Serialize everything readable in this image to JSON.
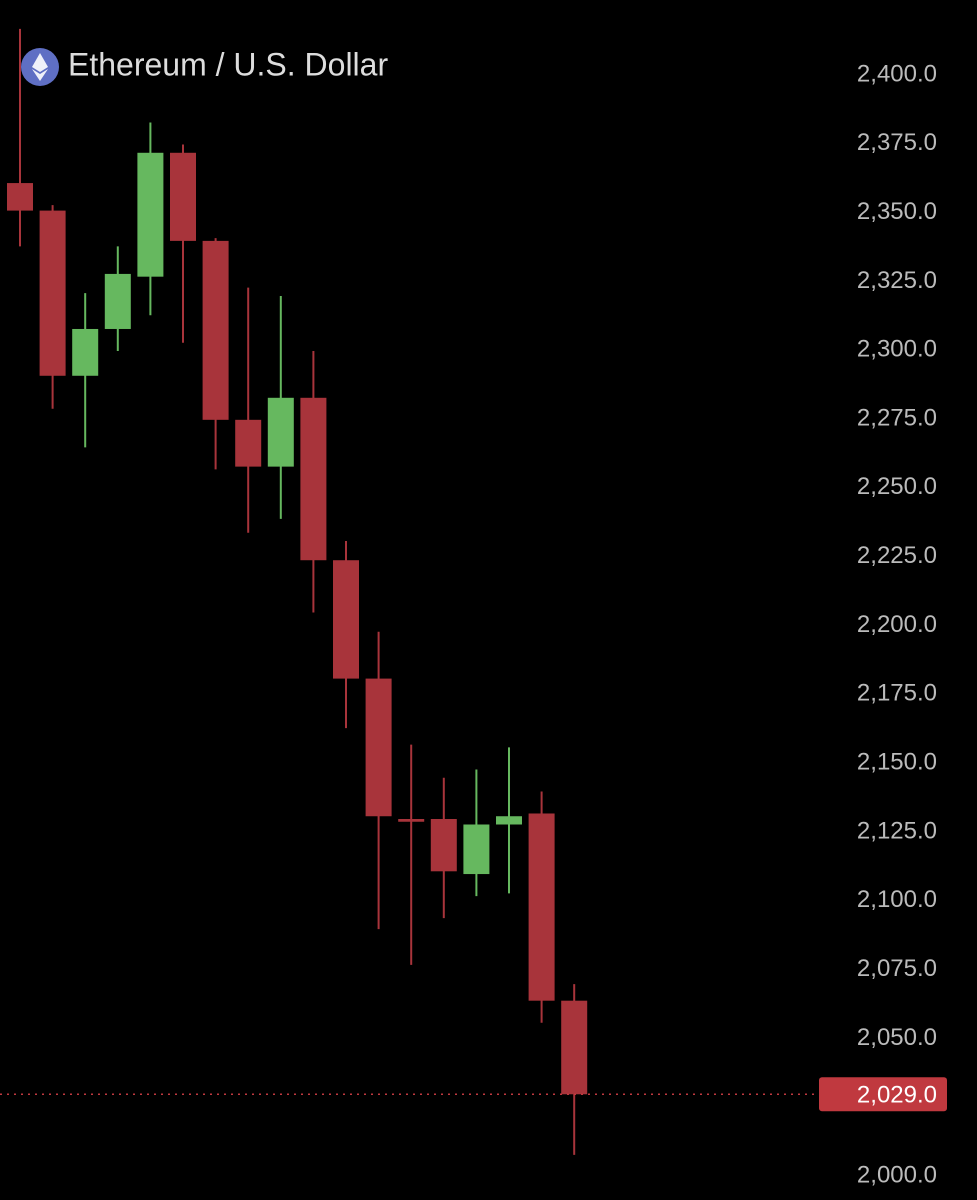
{
  "chart_data": {
    "type": "candlestick",
    "title": "Ethereum / U.S. Dollar",
    "up_color": "#66b85f",
    "down_color": "#a8343b",
    "open": [
      2360,
      2350,
      2290,
      2307,
      2326,
      2371,
      2339,
      2274,
      2257,
      2282,
      2223,
      2180,
      2129,
      2129,
      2109,
      2127,
      2131,
      2063
    ],
    "high": [
      2416,
      2352,
      2320,
      2337,
      2382,
      2374,
      2340,
      2322,
      2319,
      2299,
      2230,
      2197,
      2156,
      2144,
      2147,
      2155,
      2139,
      2069
    ],
    "low": [
      2337,
      2278,
      2264,
      2299,
      2312,
      2302,
      2256,
      2233,
      2238,
      2204,
      2162,
      2089,
      2076,
      2093,
      2101,
      2102,
      2055,
      2007
    ],
    "close": [
      2350,
      2290,
      2307,
      2327,
      2371,
      2339,
      2274,
      2257,
      2282,
      2223,
      2180,
      2130,
      2128,
      2110,
      2127,
      2130,
      2063,
      2029
    ],
    "ylim": [
      1990.6,
      2426.5
    ],
    "yticks": [
      {
        "value": 2400,
        "label": "2,400.0"
      },
      {
        "value": 2375,
        "label": "2,375.0"
      },
      {
        "value": 2350,
        "label": "2,350.0"
      },
      {
        "value": 2325,
        "label": "2,325.0"
      },
      {
        "value": 2300,
        "label": "2,300.0"
      },
      {
        "value": 2275,
        "label": "2,275.0"
      },
      {
        "value": 2250,
        "label": "2,250.0"
      },
      {
        "value": 2225,
        "label": "2,225.0"
      },
      {
        "value": 2200,
        "label": "2,200.0"
      },
      {
        "value": 2175,
        "label": "2,175.0"
      },
      {
        "value": 2150,
        "label": "2,150.0"
      },
      {
        "value": 2125,
        "label": "2,125.0"
      },
      {
        "value": 2100,
        "label": "2,100.0"
      },
      {
        "value": 2075,
        "label": "2,075.0"
      },
      {
        "value": 2050,
        "label": "2,050.0"
      },
      {
        "value": 2000,
        "label": "2,000.0"
      }
    ],
    "current_price": {
      "value": 2029,
      "label": "2,029.0"
    },
    "current_price_color": "#c0393f"
  }
}
